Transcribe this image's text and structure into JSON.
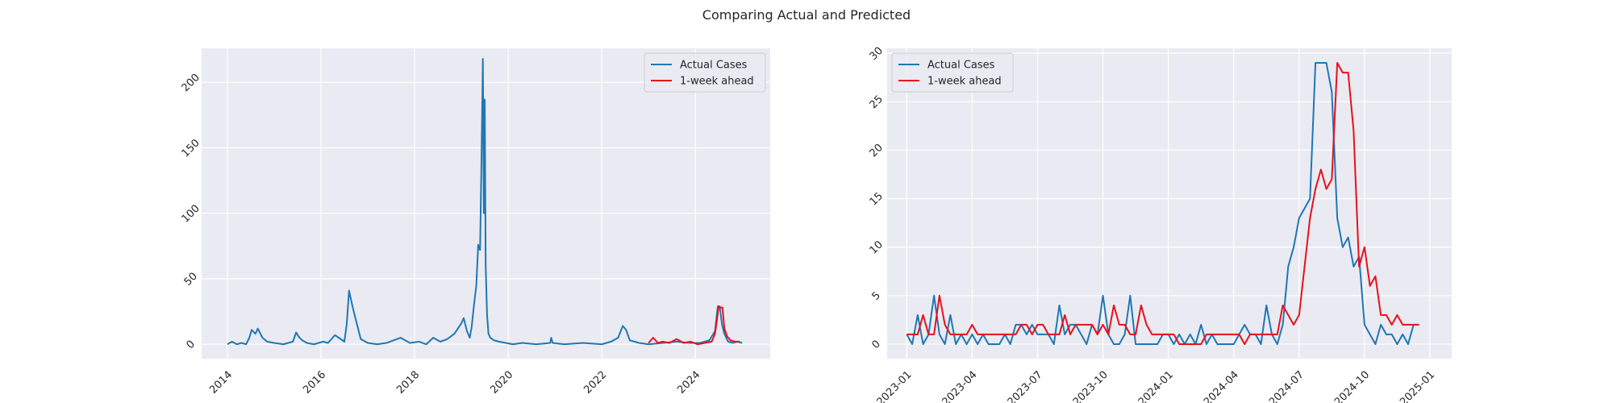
{
  "figure": {
    "suptitle": "Comparing Actual and Predicted"
  },
  "colors": {
    "axes_bg": "#eaeaf2",
    "grid": "#ffffff",
    "actual": "#1f77b4",
    "predicted": "#e8101a",
    "text": "#262626"
  },
  "chart_data": [
    {
      "type": "line",
      "title": "",
      "xlabel": "",
      "ylabel": "",
      "x_unit": "decimal year",
      "xlim": [
        2013.45,
        2025.6
      ],
      "ylim": [
        -11,
        226
      ],
      "xticks": [
        2014,
        2016,
        2018,
        2020,
        2022,
        2024
      ],
      "xtick_labels": [
        "2014",
        "2016",
        "2018",
        "2020",
        "2022",
        "2024"
      ],
      "yticks": [
        0,
        50,
        100,
        150,
        200
      ],
      "ytick_labels": [
        "0",
        "50",
        "100",
        "150",
        "200"
      ],
      "legend": {
        "placement": "top-right",
        "entries": [
          "Actual Cases",
          "1-week ahead"
        ]
      },
      "series": [
        {
          "name": "Actual Cases",
          "color_key": "actual",
          "x": [
            2014.0,
            2014.1,
            2014.2,
            2014.3,
            2014.4,
            2014.47,
            2014.52,
            2014.6,
            2014.65,
            2014.75,
            2014.85,
            2015.0,
            2015.2,
            2015.4,
            2015.47,
            2015.52,
            2015.6,
            2015.7,
            2015.85,
            2015.95,
            2016.05,
            2016.15,
            2016.3,
            2016.42,
            2016.5,
            2016.55,
            2016.6,
            2016.68,
            2016.75,
            2016.85,
            2017.0,
            2017.2,
            2017.4,
            2017.55,
            2017.7,
            2017.9,
            2018.1,
            2018.25,
            2018.4,
            2018.55,
            2018.7,
            2018.85,
            2019.0,
            2019.05,
            2019.12,
            2019.18,
            2019.22,
            2019.27,
            2019.32,
            2019.36,
            2019.4,
            2019.43,
            2019.46,
            2019.48,
            2019.5,
            2019.52,
            2019.55,
            2019.58,
            2019.62,
            2019.7,
            2019.8,
            2019.95,
            2020.1,
            2020.3,
            2020.6,
            2020.9,
            2020.92,
            2020.95,
            2021.2,
            2021.6,
            2022.0,
            2022.2,
            2022.35,
            2022.45,
            2022.52,
            2022.6,
            2022.8,
            2023.0,
            2023.3,
            2023.6,
            2023.9,
            2024.1,
            2024.3,
            2024.42,
            2024.48,
            2024.52,
            2024.57,
            2024.62,
            2024.7,
            2024.8,
            2024.9,
            2025.0
          ],
          "y": [
            0,
            2,
            0,
            1,
            0,
            5,
            11,
            8,
            12,
            5,
            2,
            1,
            0,
            2,
            9,
            6,
            3,
            1,
            0,
            1,
            2,
            1,
            7,
            4,
            2,
            15,
            41,
            28,
            18,
            4,
            1,
            0,
            1,
            3,
            5,
            1,
            2,
            0,
            5,
            2,
            4,
            8,
            16,
            20,
            10,
            5,
            13,
            30,
            45,
            76,
            72,
            140,
            218,
            100,
            187,
            60,
            22,
            8,
            5,
            3,
            2,
            1,
            0,
            1,
            0,
            1,
            5,
            1,
            0,
            1,
            0,
            2,
            5,
            14,
            11,
            3,
            1,
            0,
            1,
            2,
            1,
            1,
            3,
            10,
            29,
            29,
            15,
            8,
            2,
            1,
            2,
            1
          ]
        },
        {
          "name": "1-week ahead",
          "color_key": "predicted",
          "x": [
            2023.0,
            2023.1,
            2023.2,
            2023.3,
            2023.45,
            2023.6,
            2023.75,
            2023.9,
            2024.05,
            2024.2,
            2024.35,
            2024.42,
            2024.46,
            2024.5,
            2024.54,
            2024.58,
            2024.62,
            2024.68,
            2024.75,
            2024.85,
            2024.95
          ],
          "y": [
            1,
            5,
            1,
            2,
            1,
            4,
            1,
            2,
            0,
            1,
            2,
            8,
            18,
            29,
            28,
            28,
            12,
            6,
            3,
            2,
            2
          ]
        }
      ]
    },
    {
      "type": "line",
      "title": "",
      "xlabel": "",
      "ylabel": "",
      "x_unit": "months since 2023-01",
      "xlim": [
        -0.9,
        25.0
      ],
      "ylim": [
        -1.5,
        30.5
      ],
      "xticks": [
        0,
        3,
        6,
        9,
        12,
        15,
        18,
        21,
        24
      ],
      "xtick_labels": [
        "2023-01",
        "2023-04",
        "2023-07",
        "2023-10",
        "2024-01",
        "2024-04",
        "2024-07",
        "2024-10",
        "2025-01"
      ],
      "yticks": [
        0,
        5,
        10,
        15,
        20,
        25,
        30
      ],
      "ytick_labels": [
        "0",
        "5",
        "10",
        "15",
        "20",
        "25",
        "30"
      ],
      "legend": {
        "placement": "top-left",
        "entries": [
          "Actual Cases",
          "1-week ahead"
        ]
      },
      "series": [
        {
          "name": "Actual Cases",
          "color_key": "actual",
          "x": [
            0.0,
            0.25,
            0.5,
            0.75,
            1.0,
            1.25,
            1.5,
            1.75,
            2.0,
            2.25,
            2.5,
            2.75,
            3.0,
            3.25,
            3.5,
            3.75,
            4.0,
            4.25,
            4.5,
            4.75,
            5.0,
            5.25,
            5.5,
            5.75,
            6.0,
            6.25,
            6.5,
            6.75,
            7.0,
            7.25,
            7.5,
            7.75,
            8.0,
            8.25,
            8.5,
            8.75,
            9.0,
            9.25,
            9.5,
            9.75,
            10.0,
            10.25,
            10.5,
            10.75,
            11.0,
            11.25,
            11.5,
            11.75,
            12.0,
            12.25,
            12.5,
            12.75,
            13.0,
            13.25,
            13.5,
            13.75,
            14.0,
            14.25,
            14.5,
            14.75,
            15.0,
            15.25,
            15.5,
            15.75,
            16.0,
            16.25,
            16.5,
            16.75,
            17.0,
            17.25,
            17.5,
            17.75,
            18.0,
            18.25,
            18.5,
            18.75,
            19.0,
            19.25,
            19.5,
            19.75,
            20.0,
            20.25,
            20.5,
            20.75,
            21.0,
            21.25,
            21.5,
            21.75,
            22.0,
            22.25,
            22.5,
            22.75,
            23.0,
            23.25,
            23.5
          ],
          "y": [
            1,
            0,
            3,
            0,
            1,
            5,
            1,
            0,
            3,
            0,
            1,
            0,
            1,
            0,
            1,
            0,
            0,
            0,
            1,
            0,
            2,
            2,
            1,
            2,
            1,
            1,
            1,
            0,
            4,
            1,
            2,
            2,
            1,
            0,
            2,
            1,
            5,
            1,
            0,
            0,
            1,
            5,
            0,
            0,
            0,
            0,
            0,
            1,
            1,
            0,
            1,
            0,
            1,
            0,
            2,
            0,
            1,
            0,
            0,
            0,
            0,
            1,
            2,
            1,
            1,
            0,
            4,
            1,
            0,
            2,
            8,
            10,
            13,
            14,
            15,
            29,
            29,
            29,
            26,
            13,
            10,
            11,
            8,
            9,
            2,
            1,
            0,
            2,
            1,
            1,
            0,
            1,
            0,
            2,
            2
          ]
        },
        {
          "name": "1-week ahead",
          "color_key": "predicted",
          "x": [
            0.0,
            0.25,
            0.5,
            0.75,
            1.0,
            1.25,
            1.5,
            1.75,
            2.0,
            2.25,
            2.5,
            2.75,
            3.0,
            3.25,
            3.5,
            3.75,
            4.0,
            4.25,
            4.5,
            4.75,
            5.0,
            5.25,
            5.5,
            5.75,
            6.0,
            6.25,
            6.5,
            6.75,
            7.0,
            7.25,
            7.5,
            7.75,
            8.0,
            8.25,
            8.5,
            8.75,
            9.0,
            9.25,
            9.5,
            9.75,
            10.0,
            10.25,
            10.5,
            10.75,
            11.0,
            11.25,
            11.5,
            11.75,
            12.0,
            12.25,
            12.5,
            12.75,
            13.0,
            13.25,
            13.5,
            13.75,
            14.0,
            14.25,
            14.5,
            14.75,
            15.0,
            15.25,
            15.5,
            15.75,
            16.0,
            16.25,
            16.5,
            16.75,
            17.0,
            17.25,
            17.5,
            17.75,
            18.0,
            18.25,
            18.5,
            18.75,
            19.0,
            19.25,
            19.5,
            19.75,
            20.0,
            20.25,
            20.5,
            20.75,
            21.0,
            21.25,
            21.5,
            21.75,
            22.0,
            22.25,
            22.5,
            22.75,
            23.0,
            23.25,
            23.5
          ],
          "y": [
            1,
            1,
            1,
            3,
            1,
            1,
            5,
            2,
            1,
            1,
            1,
            1,
            2,
            1,
            1,
            1,
            1,
            1,
            1,
            1,
            1,
            2,
            2,
            1,
            2,
            2,
            1,
            1,
            1,
            3,
            1,
            2,
            2,
            2,
            2,
            1,
            2,
            1,
            4,
            2,
            2,
            1,
            1,
            4,
            2,
            1,
            1,
            1,
            1,
            1,
            0,
            0,
            0,
            0,
            0,
            1,
            1,
            1,
            1,
            1,
            1,
            1,
            0,
            1,
            1,
            1,
            1,
            1,
            1,
            4,
            3,
            2,
            3,
            8,
            13,
            16,
            18,
            16,
            17,
            29,
            28,
            28,
            22,
            8,
            10,
            6,
            7,
            3,
            3,
            2,
            3,
            2,
            2,
            2,
            2
          ]
        }
      ]
    }
  ]
}
